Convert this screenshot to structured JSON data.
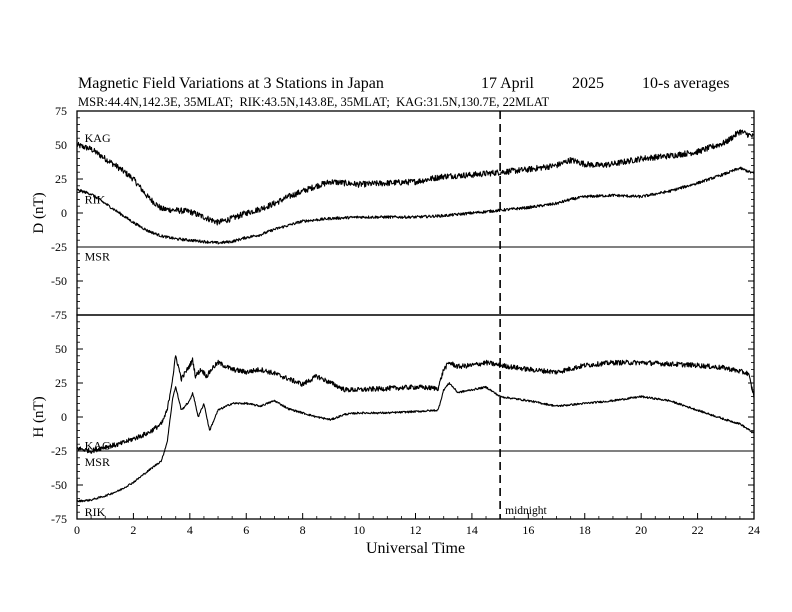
{
  "chart_data": {
    "type": "line",
    "title": "Magnetic Field Variations at 3 Stations in Japan",
    "date": "17 April",
    "year": "2025",
    "averaging": "10-s averages",
    "subtitle": "MSR:44.4N,142.3E, 35MLAT;  RIK:43.5N,143.8E, 35MLAT;  KAG:31.5N,130.7E, 22MLAT",
    "xlabel": "Universal Time",
    "xlim": [
      0,
      24
    ],
    "xticks": [
      0,
      2,
      4,
      6,
      8,
      10,
      12,
      14,
      16,
      18,
      20,
      22,
      24
    ],
    "midnight": {
      "x": 15,
      "label": "midnight"
    },
    "panels": [
      {
        "id": "D",
        "ylabel": "D (nT)",
        "ylim": [
          -75,
          75
        ],
        "yticks": [
          75,
          50,
          25,
          0,
          -25,
          -50,
          -75
        ],
        "series": [
          {
            "name": "KAG",
            "noise": 2.2,
            "x": [
              0,
              0.5,
              1,
              1.5,
              2,
              2.5,
              3,
              3.5,
              4,
              4.5,
              5,
              5.5,
              6,
              6.5,
              7,
              7.5,
              8,
              8.5,
              9,
              9.5,
              10,
              11,
              12,
              13,
              14,
              15,
              16,
              17,
              17.5,
              18,
              18.5,
              19,
              20,
              21,
              22,
              23,
              23.5,
              24
            ],
            "y": [
              50,
              47,
              40,
              33,
              25,
              12,
              3,
              2,
              1,
              -3,
              -7,
              -4,
              0,
              3,
              7,
              12,
              16,
              20,
              23,
              22,
              21,
              22,
              23,
              27,
              28,
              30,
              32,
              35,
              39,
              36,
              35,
              36,
              40,
              42,
              45,
              52,
              60,
              56
            ]
          },
          {
            "name": "RIK",
            "noise": 1.0,
            "x": [
              0,
              0.5,
              1,
              1.5,
              2,
              2.5,
              3,
              3.5,
              4,
              4.5,
              5,
              5.5,
              6,
              6.5,
              7,
              8,
              9,
              10,
              11,
              12,
              13,
              14,
              15,
              16,
              17,
              17.5,
              18,
              19,
              20,
              21,
              22,
              23,
              23.5,
              24
            ],
            "y": [
              17,
              14,
              7,
              0,
              -7,
              -13,
              -17,
              -19,
              -20,
              -21,
              -22,
              -21,
              -18,
              -16,
              -12,
              -6,
              -4,
              -3,
              -3,
              -3,
              -2,
              0,
              2,
              4,
              7,
              10,
              12,
              13,
              12,
              16,
              22,
              29,
              33,
              29
            ]
          },
          {
            "name": "MSR",
            "noise": 0,
            "x": [
              0,
              24
            ],
            "y": [
              -25,
              -25
            ]
          }
        ],
        "labels": [
          {
            "name": "KAG",
            "x": 0.2,
            "y": 55
          },
          {
            "name": "RIK",
            "x": 0.2,
            "y": 10
          },
          {
            "name": "MSR",
            "x": 0.2,
            "y": -32
          }
        ]
      },
      {
        "id": "H",
        "ylabel": "H (nT)",
        "ylim": [
          -75,
          75
        ],
        "yticks": [
          75,
          50,
          25,
          0,
          -25,
          -50,
          -75
        ],
        "series": [
          {
            "name": "KAG",
            "noise": 1.8,
            "x": [
              0,
              0.5,
              1,
              1.5,
              2,
              2.5,
              3,
              3.2,
              3.4,
              3.5,
              3.7,
              4,
              4.1,
              4.2,
              4.4,
              4.6,
              4.8,
              5,
              5.5,
              6,
              6.5,
              7,
              7.5,
              8,
              8.5,
              9,
              9.5,
              10,
              11,
              12,
              12.8,
              13,
              13.2,
              13.5,
              14,
              14.5,
              15,
              16,
              17,
              18,
              19,
              20,
              21,
              22,
              23,
              23.8,
              24
            ],
            "y": [
              -23,
              -25,
              -22,
              -20,
              -16,
              -12,
              -5,
              5,
              30,
              45,
              28,
              38,
              42,
              30,
              35,
              30,
              36,
              40,
              35,
              33,
              35,
              32,
              28,
              24,
              30,
              25,
              20,
              20,
              21,
              22,
              21,
              35,
              40,
              37,
              38,
              40,
              38,
              35,
              33,
              38,
              40,
              40,
              39,
              38,
              36,
              32,
              15
            ]
          },
          {
            "name": "RIK",
            "noise": 0.7,
            "x": [
              0,
              0.5,
              1,
              1.5,
              2,
              2.5,
              3,
              3.2,
              3.4,
              3.5,
              3.7,
              4,
              4.1,
              4.3,
              4.5,
              4.7,
              5,
              5.5,
              6,
              6.5,
              7,
              7.5,
              8,
              8.5,
              9,
              9.5,
              10,
              11,
              12,
              12.8,
              13,
              13.2,
              13.5,
              14,
              14.5,
              15,
              16,
              17,
              18,
              19,
              20,
              21,
              22,
              23,
              23.5,
              24
            ],
            "y": [
              -62,
              -61,
              -58,
              -54,
              -48,
              -40,
              -32,
              -18,
              15,
              22,
              5,
              12,
              18,
              0,
              10,
              -10,
              5,
              10,
              10,
              8,
              12,
              6,
              3,
              0,
              -2,
              2,
              3,
              3,
              4,
              5,
              20,
              25,
              18,
              20,
              22,
              15,
              12,
              8,
              10,
              12,
              15,
              12,
              5,
              -2,
              -5,
              -12
            ]
          },
          {
            "name": "MSR",
            "noise": 0,
            "x": [
              0,
              24
            ],
            "y": [
              -25,
              -25
            ]
          }
        ],
        "labels": [
          {
            "name": "KAG",
            "x": 0.2,
            "y": -21
          },
          {
            "name": "MSR",
            "x": 0.2,
            "y": -33
          },
          {
            "name": "RIK",
            "x": 0.2,
            "y": -70
          }
        ]
      }
    ]
  }
}
